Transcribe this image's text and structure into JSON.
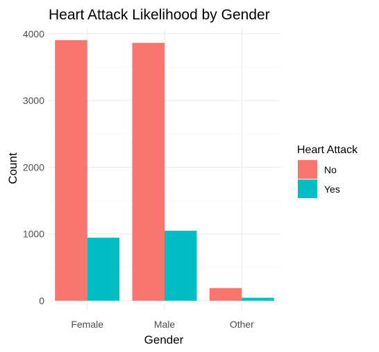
{
  "chart_data": {
    "type": "bar",
    "title": "Heart Attack Likelihood by Gender",
    "xlabel": "Gender",
    "ylabel": "Count",
    "categories": [
      "Female",
      "Male",
      "Other"
    ],
    "series": [
      {
        "name": "No",
        "values": [
          3905,
          3865,
          190
        ],
        "color": "#F8766D"
      },
      {
        "name": "Yes",
        "values": [
          945,
          1050,
          45
        ],
        "color": "#00BFC4"
      }
    ],
    "yticks": [
      0,
      1000,
      2000,
      3000,
      4000
    ],
    "ylim": [
      0,
      4150
    ],
    "grid": true,
    "legend": {
      "title": "Heart Attack",
      "position": "right"
    }
  }
}
